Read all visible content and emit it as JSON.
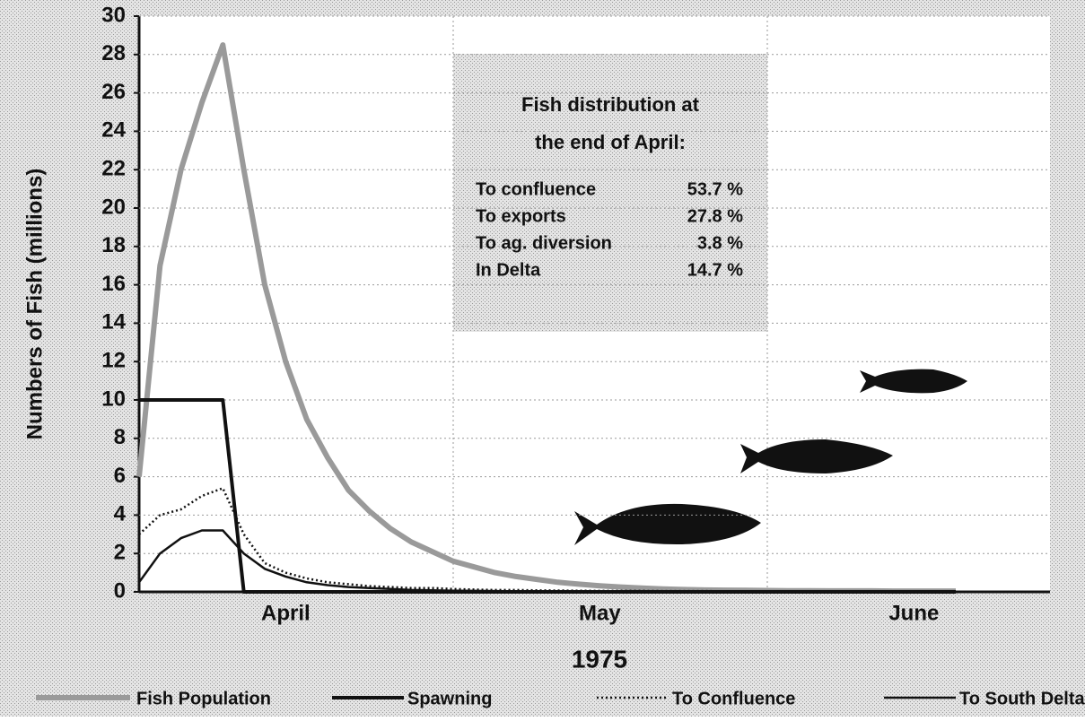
{
  "chart_data": {
    "type": "line",
    "y_label": "Numbers of Fish (millions)",
    "x_label": "1975",
    "categories": [
      null,
      null,
      null,
      null,
      null,
      null,
      null,
      "April",
      null,
      null,
      null,
      null,
      null,
      null,
      null,
      null,
      null,
      null,
      null,
      null,
      null,
      null,
      "May",
      null,
      null,
      null,
      null,
      null,
      null,
      null,
      null,
      null,
      null,
      null,
      null,
      null,
      null,
      "June",
      null,
      null
    ],
    "series": [
      {
        "name": "Fish Population",
        "color": "#9a9a9a",
        "linewidth": 6,
        "line_style": "solid",
        "values": [
          6,
          17,
          22,
          25.5,
          28.5,
          22,
          16,
          12,
          9,
          7,
          5.3,
          4.2,
          3.3,
          2.6,
          2.1,
          1.6,
          1.3,
          1.0,
          0.8,
          0.65,
          0.5,
          0.4,
          0.32,
          0.25,
          0.2,
          0.15,
          0.12,
          0.1,
          0.09,
          0.08,
          0.07,
          0.06,
          0.06,
          0.05,
          0.05,
          0.05,
          0.04,
          0.04,
          0.04,
          0.04
        ]
      },
      {
        "name": "Spawning",
        "color": "#111111",
        "linewidth": 4,
        "line_style": "solid",
        "values": [
          10,
          10,
          10,
          10,
          10,
          0,
          0,
          0,
          0,
          0,
          0,
          0,
          0,
          0,
          0,
          0,
          0,
          0,
          0,
          0,
          0,
          0,
          0,
          0,
          0,
          0,
          0,
          0,
          0,
          0,
          0,
          0,
          0,
          0,
          0,
          0,
          0,
          0,
          0,
          0
        ]
      },
      {
        "name": "To Confluence",
        "color": "#111111",
        "linewidth": 2.5,
        "line_style": "dotted",
        "values": [
          3,
          4,
          4.3,
          5,
          5.4,
          3,
          1.5,
          1,
          0.7,
          0.5,
          0.4,
          0.3,
          0.25,
          0.2,
          0.2,
          0.15,
          0.12,
          0.1,
          0.1,
          0.08,
          0.07,
          0.06,
          0.05,
          0.05,
          0.05,
          0.04,
          0.04,
          0.04,
          0.03,
          0.03,
          0.03,
          0.03,
          0.03,
          0.02,
          0.02,
          0.02,
          0.02,
          0.02,
          0.02,
          0.02
        ]
      },
      {
        "name": "To South Delta",
        "color": "#111111",
        "linewidth": 2.5,
        "line_style": "solid",
        "values": [
          0.5,
          2,
          2.8,
          3.2,
          3.2,
          2,
          1.2,
          0.8,
          0.5,
          0.35,
          0.25,
          0.2,
          0.15,
          0.1,
          0.08,
          0.06,
          0.05,
          0.04,
          0.03,
          0.02,
          0.02,
          0.01,
          0.01,
          0.01,
          0,
          0,
          0,
          0,
          0,
          0,
          0,
          0,
          0,
          0,
          0,
          0,
          0,
          0,
          0,
          0
        ]
      }
    ],
    "ylim": [
      0,
      30
    ],
    "yticks": [
      0,
      2,
      4,
      6,
      8,
      10,
      12,
      14,
      16,
      18,
      20,
      22,
      24,
      26,
      28,
      30
    ],
    "grid": true,
    "legend": "bottom",
    "annotation": {
      "title": [
        "Fish distribution at",
        "the end of April:"
      ],
      "rows": [
        [
          "To confluence",
          "53.7 %"
        ],
        [
          "To exports",
          "27.8 %"
        ],
        [
          "To ag. diversion",
          "3.8 %"
        ],
        [
          "In Delta",
          "14.7 %"
        ]
      ]
    }
  }
}
